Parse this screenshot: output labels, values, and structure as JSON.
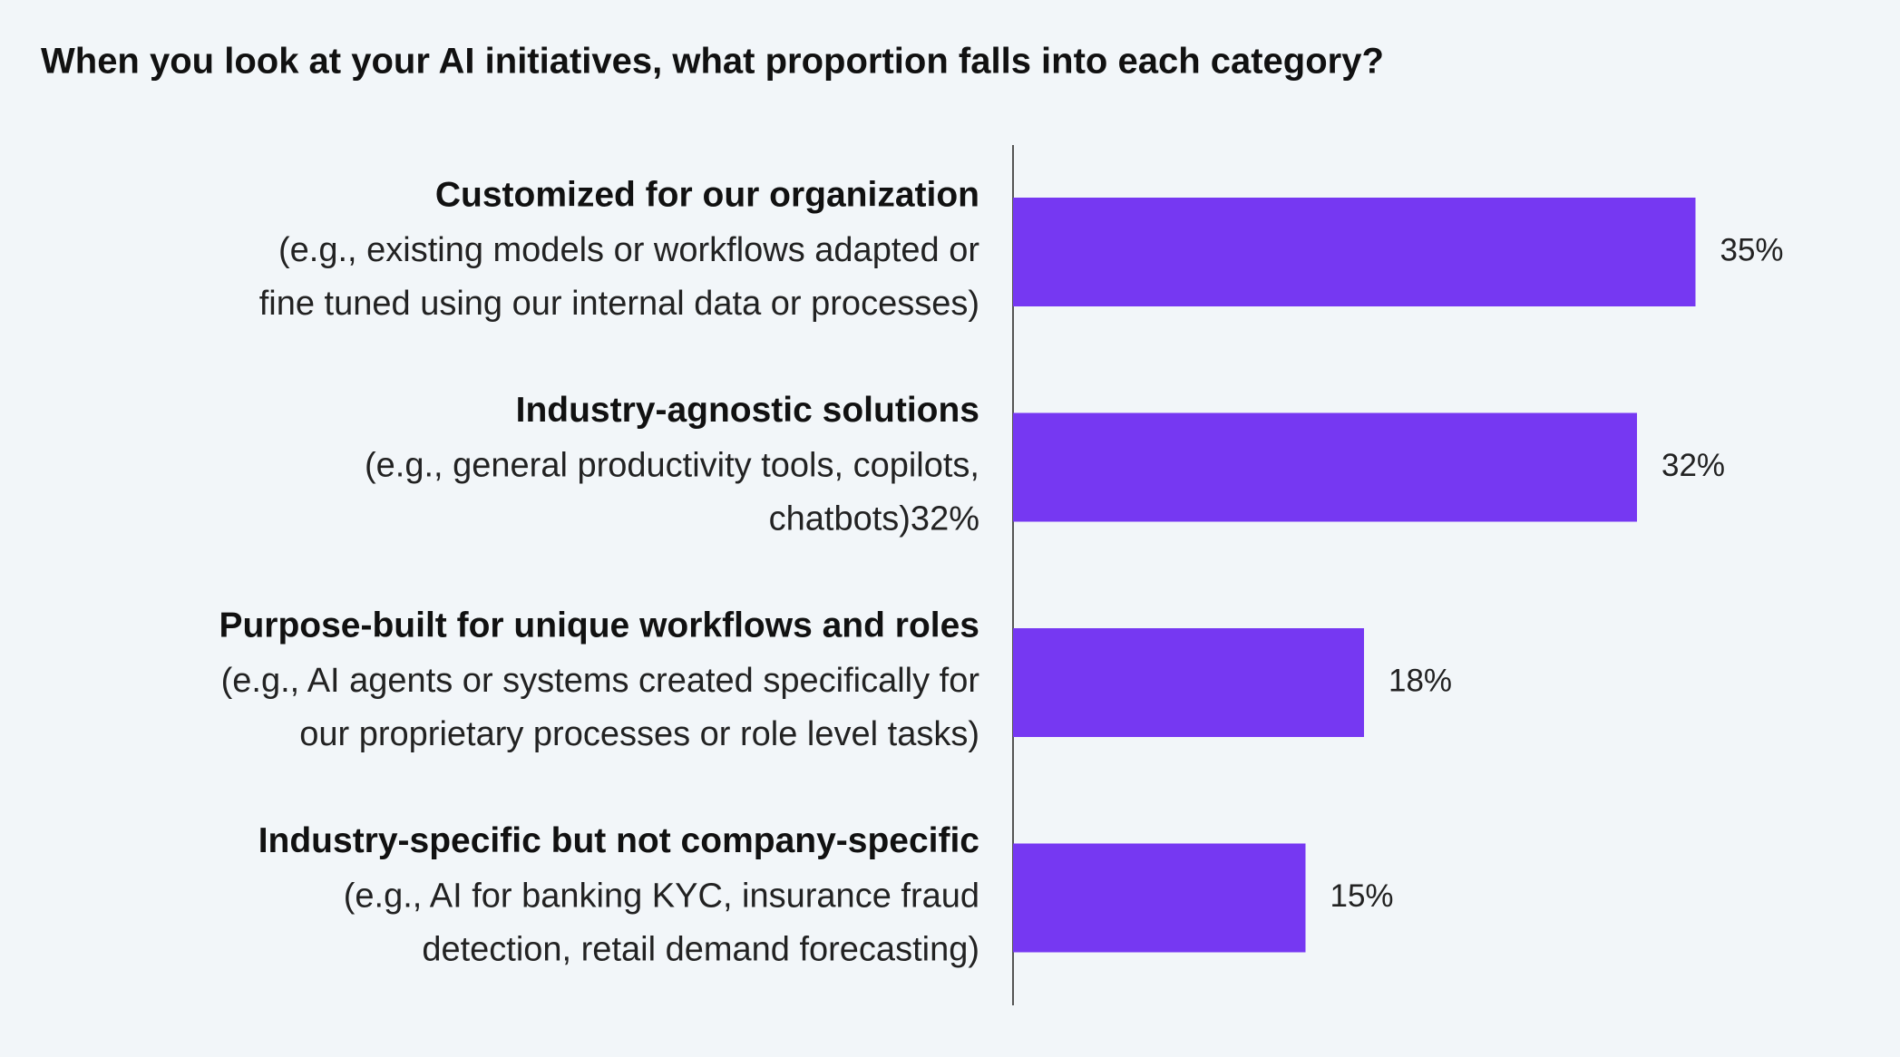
{
  "chart_data": {
    "type": "bar",
    "orientation": "horizontal",
    "title": "When you look at your AI initiatives, what proportion falls into each category?",
    "categories": [
      "Customized for our organization",
      "Industry-agnostic solutions",
      "Purpose-built for unique workflows and roles",
      "Industry-specific but not company-specific"
    ],
    "descriptions": [
      [
        "(e.g., existing models or workflows adapted or",
        "fine tuned using our internal data or processes)"
      ],
      [
        "(e.g., general productivity tools, copilots,",
        "chatbots)32%"
      ],
      [
        "(e.g., AI agents or systems created specifically for",
        "our proprietary processes or role level tasks)"
      ],
      [
        "(e.g., AI for banking KYC, insurance fraud",
        "detection, retail demand forecasting)"
      ]
    ],
    "values": [
      35,
      32,
      18,
      15
    ],
    "value_labels": [
      "35%",
      "32%",
      "18%",
      "15%"
    ],
    "color": "#7638f2"
  }
}
